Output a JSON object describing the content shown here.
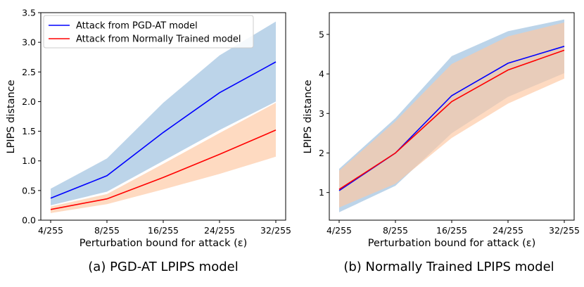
{
  "chart_data": [
    {
      "type": "line",
      "caption": "(a) PGD-AT LPIPS model",
      "xlabel": "Perturbation bound for attack (ε)",
      "ylabel": "LPIPS distance",
      "categories": [
        "4/255",
        "8/255",
        "16/255",
        "24/255",
        "32/255"
      ],
      "ylim": [
        0,
        3.5
      ],
      "yticks": [
        "0.0",
        "0.5",
        "1.0",
        "1.5",
        "2.0",
        "2.5",
        "3.0",
        "3.5"
      ],
      "grid": false,
      "legend_position": "top-left",
      "series": [
        {
          "name": "Attack from PGD-AT model",
          "color": "#0000ff",
          "band_color": "#a9c8e3",
          "values": [
            0.37,
            0.75,
            1.48,
            2.15,
            2.67
          ],
          "lower": [
            0.25,
            0.48,
            1.0,
            1.52,
            2.0
          ],
          "upper": [
            0.53,
            1.04,
            1.98,
            2.78,
            3.35
          ]
        },
        {
          "name": "Attack from Normally Trained model",
          "color": "#ff0000",
          "band_color": "#fdc9a4",
          "values": [
            0.18,
            0.36,
            0.72,
            1.11,
            1.52
          ],
          "lower": [
            0.12,
            0.27,
            0.52,
            0.78,
            1.07
          ],
          "upper": [
            0.23,
            0.44,
            0.95,
            1.47,
            1.98
          ]
        }
      ]
    },
    {
      "type": "line",
      "caption": "(b) Normally Trained LPIPS model",
      "xlabel": "Perturbation bound for attack (ε)",
      "ylabel": "LPIPS distance",
      "categories": [
        "4/255",
        "8/255",
        "16/255",
        "24/255",
        "32/255"
      ],
      "ylim": [
        0.3,
        5.55
      ],
      "yticks": [
        "1",
        "2",
        "3",
        "4",
        "5"
      ],
      "grid": false,
      "series": [
        {
          "name": "Attack from PGD-AT model",
          "color": "#0000ff",
          "band_color": "#a9c8e3",
          "values": [
            1.05,
            2.0,
            3.45,
            4.27,
            4.7
          ],
          "lower": [
            0.5,
            1.17,
            2.5,
            3.42,
            4.02
          ],
          "upper": [
            1.6,
            2.88,
            4.45,
            5.08,
            5.38
          ]
        },
        {
          "name": "Attack from Normally Trained model",
          "color": "#ff0000",
          "band_color": "#fdc9a4",
          "values": [
            1.08,
            2.0,
            3.3,
            4.1,
            4.6
          ],
          "lower": [
            0.62,
            1.22,
            2.38,
            3.25,
            3.88
          ],
          "upper": [
            1.55,
            2.8,
            4.25,
            4.95,
            5.3
          ]
        }
      ]
    }
  ]
}
